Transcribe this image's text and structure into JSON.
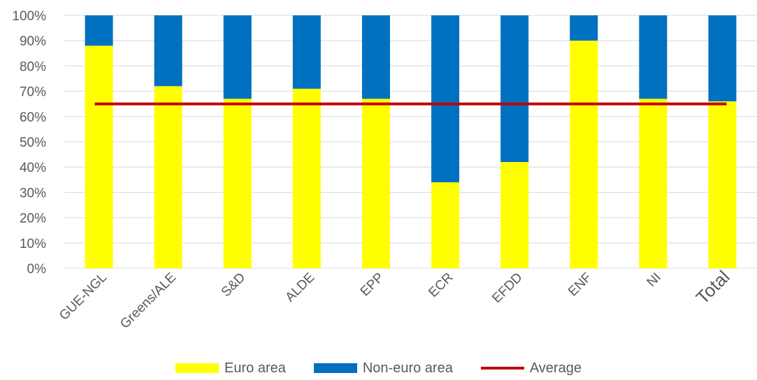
{
  "chart_data": {
    "type": "bar",
    "stacked": true,
    "categories": [
      "GUE-NGL",
      "Greens/ALE",
      "S&D",
      "ALDE",
      "EPP",
      "ECR",
      "EFDD",
      "ENF",
      "NI",
      "Total"
    ],
    "series": [
      {
        "name": "Euro area",
        "color": "#ffff00",
        "values": [
          88,
          72,
          67,
          71,
          67,
          34,
          42,
          90,
          67,
          66
        ]
      },
      {
        "name": "Non-euro area",
        "color": "#0070c0",
        "values": [
          12,
          28,
          33,
          29,
          33,
          66,
          58,
          10,
          33,
          34
        ]
      }
    ],
    "average": {
      "name": "Average",
      "color": "#c00000",
      "value": 65
    },
    "yticks": [
      "0%",
      "10%",
      "20%",
      "30%",
      "40%",
      "50%",
      "60%",
      "70%",
      "80%",
      "90%",
      "100%"
    ],
    "ylim": [
      0,
      100
    ],
    "grid": true,
    "legend_position": "bottom"
  }
}
